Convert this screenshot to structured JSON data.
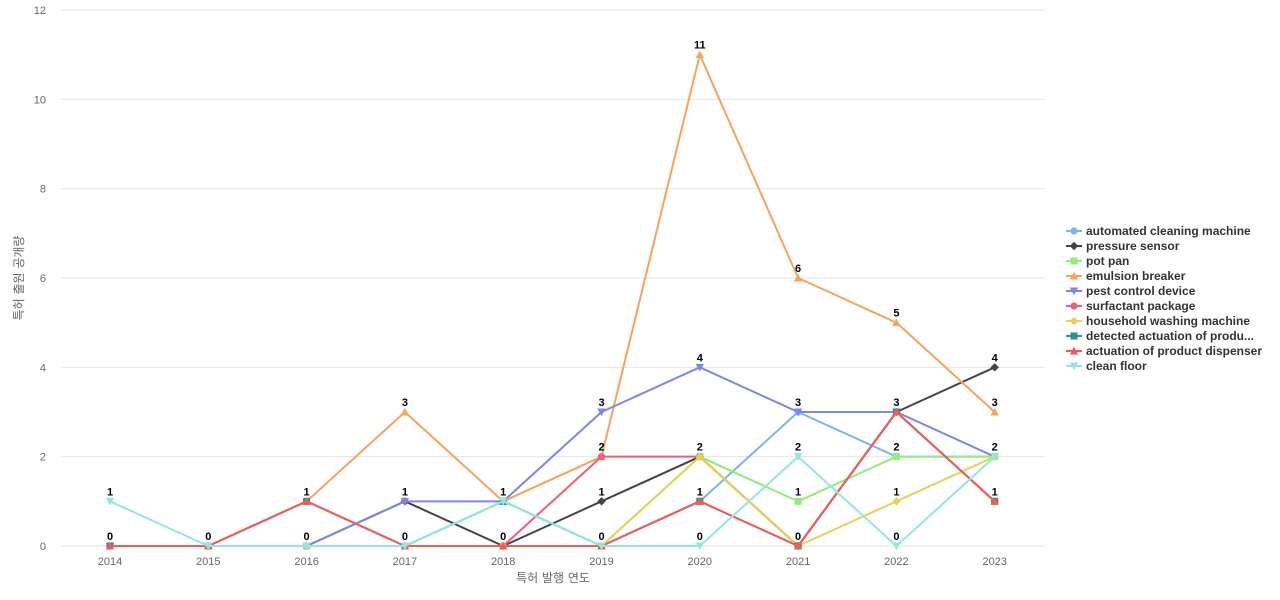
{
  "chart_data": {
    "type": "line",
    "title": "",
    "xlabel": "특허 발행 연도",
    "ylabel": "특허 출원 공개량",
    "categories": [
      "2014",
      "2015",
      "2016",
      "2017",
      "2018",
      "2019",
      "2020",
      "2021",
      "2022",
      "2023"
    ],
    "ylim": [
      0,
      12
    ],
    "yticks": [
      0,
      2,
      4,
      6,
      8,
      10,
      12
    ],
    "grid": true,
    "legend_position": "right",
    "series": [
      {
        "name": "automated cleaning machine",
        "color": "#7cb5ec",
        "marker": "circle",
        "values": [
          0,
          0,
          0,
          0,
          0,
          0,
          1,
          3,
          2,
          2
        ]
      },
      {
        "name": "pressure sensor",
        "color": "#434348",
        "marker": "diamond",
        "values": [
          0,
          0,
          0,
          1,
          0,
          1,
          2,
          0,
          3,
          4
        ]
      },
      {
        "name": "pot pan",
        "color": "#90ed7d",
        "marker": "square",
        "values": [
          0,
          0,
          0,
          0,
          0,
          0,
          2,
          1,
          2,
          2
        ]
      },
      {
        "name": "emulsion breaker",
        "color": "#f7a35c",
        "marker": "triangle",
        "values": [
          0,
          0,
          1,
          3,
          1,
          2,
          11,
          6,
          5,
          3
        ]
      },
      {
        "name": "pest control device",
        "color": "#8085e9",
        "marker": "triangle-down",
        "values": [
          0,
          0,
          0,
          1,
          1,
          3,
          4,
          3,
          3,
          2
        ]
      },
      {
        "name": "surfactant package",
        "color": "#f15c80",
        "marker": "circle",
        "values": [
          0,
          0,
          0,
          0,
          0,
          2,
          2,
          0,
          3,
          1
        ]
      },
      {
        "name": "household washing machine",
        "color": "#e4d354",
        "marker": "diamond",
        "values": [
          0,
          0,
          0,
          0,
          0,
          0,
          2,
          0,
          1,
          2
        ]
      },
      {
        "name": "detected actuation of produ...",
        "color": "#2b908f",
        "marker": "square",
        "values": [
          0,
          0,
          1,
          0,
          1,
          0,
          1,
          0,
          3,
          1
        ]
      },
      {
        "name": "actuation of product dispenser",
        "color": "#f45b5b",
        "marker": "triangle",
        "values": [
          0,
          0,
          1,
          0,
          0,
          0,
          1,
          0,
          3,
          1
        ]
      },
      {
        "name": "clean floor",
        "color": "#91e8e1",
        "marker": "triangle-down",
        "values": [
          1,
          0,
          0,
          0,
          1,
          0,
          0,
          2,
          0,
          2
        ]
      }
    ],
    "data_labels": [
      {
        "category": "2014",
        "series": "clean floor",
        "text": "1"
      },
      {
        "category": "2014",
        "series": "actuation of product dispenser",
        "text": "0"
      },
      {
        "category": "2015",
        "series": "clean floor",
        "text": "0"
      },
      {
        "category": "2016",
        "series": "actuation of product dispenser",
        "text": "1"
      },
      {
        "category": "2016",
        "series": "clean floor",
        "text": "0"
      },
      {
        "category": "2017",
        "series": "emulsion breaker",
        "text": "3"
      },
      {
        "category": "2017",
        "series": "pest control device",
        "text": "1"
      },
      {
        "category": "2017",
        "series": "clean floor",
        "text": "0"
      },
      {
        "category": "2018",
        "series": "clean floor",
        "text": "1"
      },
      {
        "category": "2018",
        "series": "household washing machine",
        "text": "0"
      },
      {
        "category": "2019",
        "series": "pest control device",
        "text": "3"
      },
      {
        "category": "2019",
        "series": "surfactant package",
        "text": "2"
      },
      {
        "category": "2019",
        "series": "pressure sensor",
        "text": "1"
      },
      {
        "category": "2019",
        "series": "clean floor",
        "text": "0"
      },
      {
        "category": "2020",
        "series": "emulsion breaker",
        "text": "11"
      },
      {
        "category": "2020",
        "series": "pest control device",
        "text": "4"
      },
      {
        "category": "2020",
        "series": "household washing machine",
        "text": "2"
      },
      {
        "category": "2020",
        "series": "actuation of product dispenser",
        "text": "1"
      },
      {
        "category": "2020",
        "series": "clean floor",
        "text": "0"
      },
      {
        "category": "2021",
        "series": "emulsion breaker",
        "text": "6"
      },
      {
        "category": "2021",
        "series": "pest control device",
        "text": "3"
      },
      {
        "category": "2021",
        "series": "clean floor",
        "text": "2"
      },
      {
        "category": "2021",
        "series": "pot pan",
        "text": "1"
      },
      {
        "category": "2021",
        "series": "actuation of product dispenser",
        "text": "0"
      },
      {
        "category": "2022",
        "series": "emulsion breaker",
        "text": "5"
      },
      {
        "category": "2022",
        "series": "pest control device",
        "text": "3"
      },
      {
        "category": "2022",
        "series": "pot pan",
        "text": "2"
      },
      {
        "category": "2022",
        "series": "household washing machine",
        "text": "1"
      },
      {
        "category": "2022",
        "series": "clean floor",
        "text": "0"
      },
      {
        "category": "2023",
        "series": "pressure sensor",
        "text": "4"
      },
      {
        "category": "2023",
        "series": "emulsion breaker",
        "text": "3"
      },
      {
        "category": "2023",
        "series": "clean floor",
        "text": "2"
      },
      {
        "category": "2023",
        "series": "actuation of product dispenser",
        "text": "1"
      }
    ]
  }
}
